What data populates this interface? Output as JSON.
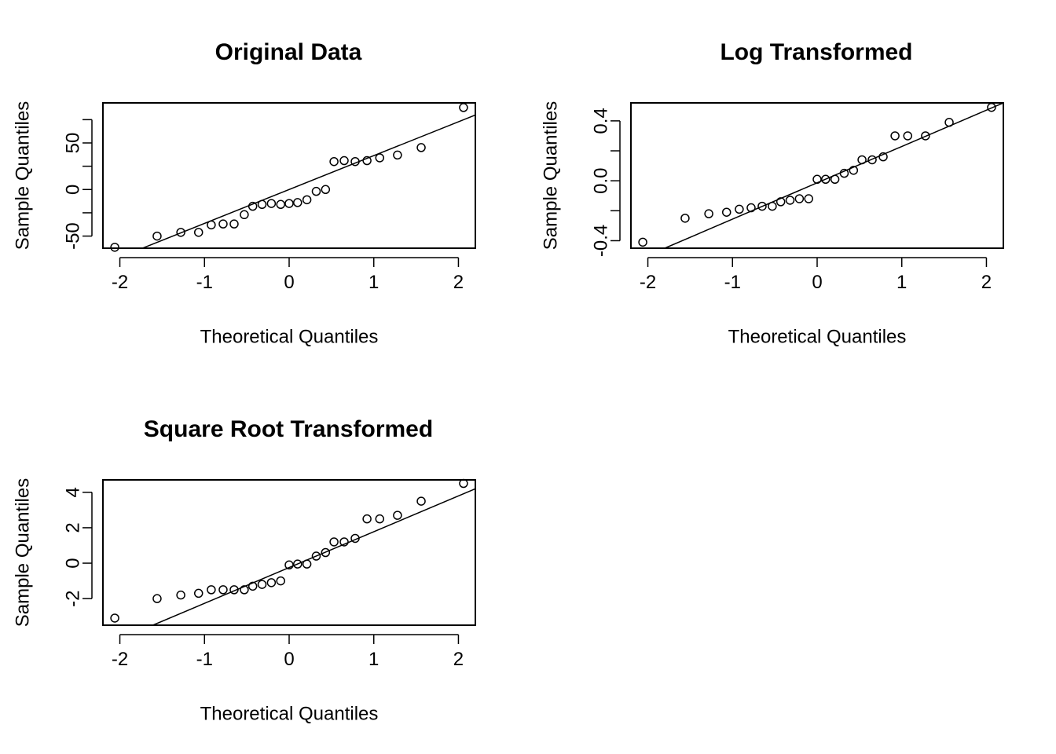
{
  "chart_data": [
    {
      "type": "scatter",
      "title": "Original Data",
      "xlabel": "Theoretical Quantiles",
      "ylabel": "Sample Quantiles",
      "xlim": [
        -2.2,
        2.2
      ],
      "ylim": [
        -63,
        93
      ],
      "xticks": [
        -2,
        -1,
        0,
        1,
        2
      ],
      "yticks": [
        -50,
        0,
        50
      ],
      "yticks_minor": [
        -25,
        25,
        75
      ],
      "grid": false,
      "ref_line": {
        "x1": -2.2,
        "y1": -80,
        "x2": 2.2,
        "y2": 80
      },
      "x": [
        -2.06,
        -1.56,
        -1.28,
        -1.07,
        -0.92,
        -0.78,
        -0.65,
        -0.53,
        -0.43,
        -0.32,
        -0.21,
        -0.1,
        0.0,
        0.1,
        0.21,
        0.32,
        0.43,
        0.53,
        0.65,
        0.78,
        0.92,
        1.07,
        1.28,
        1.56,
        2.06
      ],
      "y": [
        -62,
        -50,
        -46,
        -46,
        -38,
        -37,
        -37,
        -27,
        -18,
        -16,
        -15,
        -16,
        -15,
        -14,
        -11,
        -2,
        0,
        30,
        31,
        30,
        31,
        34,
        37,
        45,
        88
      ]
    },
    {
      "type": "scatter",
      "title": "Log Transformed",
      "xlabel": "Theoretical Quantiles",
      "ylabel": "Sample Quantiles",
      "xlim": [
        -2.2,
        2.2
      ],
      "ylim": [
        -0.45,
        0.52
      ],
      "xticks": [
        -2,
        -1,
        0,
        1,
        2
      ],
      "yticks": [
        -0.4,
        0.0,
        0.4
      ],
      "ytick_labels": [
        "-0.4",
        "0.0",
        "0.4"
      ],
      "yticks_minor": [
        -0.2,
        0.2
      ],
      "grid": false,
      "ref_line": {
        "x1": -1.8,
        "y1": -0.45,
        "x2": 2.2,
        "y2": 0.52
      },
      "x": [
        -2.06,
        -1.56,
        -1.28,
        -1.07,
        -0.92,
        -0.78,
        -0.65,
        -0.53,
        -0.43,
        -0.32,
        -0.21,
        -0.1,
        0.0,
        0.1,
        0.21,
        0.32,
        0.43,
        0.53,
        0.65,
        0.78,
        0.92,
        1.07,
        1.28,
        1.56,
        2.06
      ],
      "y": [
        -0.41,
        -0.25,
        -0.22,
        -0.21,
        -0.19,
        -0.18,
        -0.17,
        -0.17,
        -0.14,
        -0.13,
        -0.12,
        -0.12,
        0.01,
        0.01,
        0.01,
        0.05,
        0.07,
        0.14,
        0.14,
        0.16,
        0.3,
        0.3,
        0.3,
        0.39,
        0.49
      ]
    },
    {
      "type": "scatter",
      "title": "Square Root Transformed",
      "xlabel": "Theoretical Quantiles",
      "ylabel": "Sample Quantiles",
      "xlim": [
        -2.2,
        2.2
      ],
      "ylim": [
        -3.5,
        4.7
      ],
      "xticks": [
        -2,
        -1,
        0,
        1,
        2
      ],
      "yticks": [
        -2,
        0,
        2,
        4
      ],
      "grid": false,
      "ref_line": {
        "x1": -1.61,
        "y1": -3.5,
        "x2": 2.2,
        "y2": 4.2
      },
      "x": [
        -2.06,
        -1.56,
        -1.28,
        -1.07,
        -0.92,
        -0.78,
        -0.65,
        -0.53,
        -0.43,
        -0.32,
        -0.21,
        -0.1,
        0.0,
        0.1,
        0.21,
        0.32,
        0.43,
        0.53,
        0.65,
        0.78,
        0.92,
        1.07,
        1.28,
        1.56,
        2.06
      ],
      "y": [
        -3.1,
        -2.0,
        -1.8,
        -1.7,
        -1.5,
        -1.5,
        -1.5,
        -1.5,
        -1.3,
        -1.2,
        -1.1,
        -1.0,
        -0.1,
        -0.05,
        -0.05,
        0.4,
        0.6,
        1.2,
        1.2,
        1.4,
        2.5,
        2.5,
        2.7,
        3.5,
        4.5
      ]
    }
  ]
}
